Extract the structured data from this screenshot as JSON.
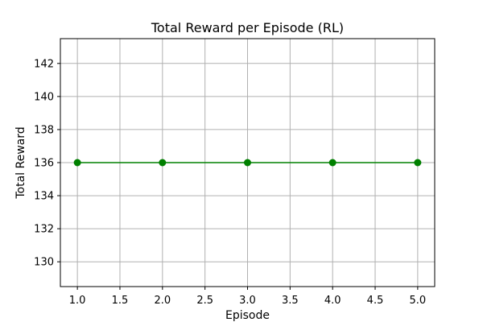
{
  "chart_data": {
    "type": "line",
    "title": "Total Reward per Episode (RL)",
    "xlabel": "Episode",
    "ylabel": "Total Reward",
    "xlim": [
      0.8,
      5.2
    ],
    "ylim": [
      128.5,
      143.5
    ],
    "xticks": [
      1.0,
      1.5,
      2.0,
      2.5,
      3.0,
      3.5,
      4.0,
      4.5,
      5.0
    ],
    "xtick_labels": [
      "1.0",
      "1.5",
      "2.0",
      "2.5",
      "3.0",
      "3.5",
      "4.0",
      "4.5",
      "5.0"
    ],
    "yticks": [
      130,
      132,
      134,
      136,
      138,
      140,
      142
    ],
    "ytick_labels": [
      "130",
      "132",
      "134",
      "136",
      "138",
      "140",
      "142"
    ],
    "grid": true,
    "legend": false,
    "series": [
      {
        "x": [
          1,
          2,
          3,
          4,
          5
        ],
        "y": [
          136,
          136,
          136,
          136,
          136
        ],
        "color": "#008000",
        "marker": "circle"
      }
    ]
  }
}
